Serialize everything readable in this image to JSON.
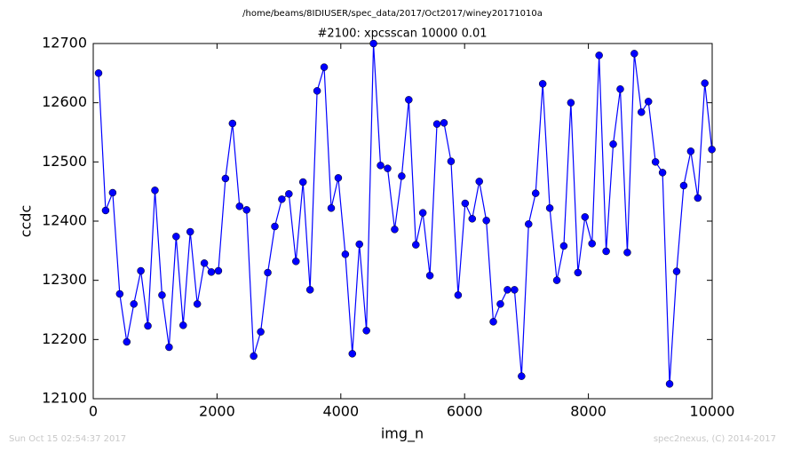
{
  "chart_data": {
    "type": "line",
    "suptitle": "/home/beams/8IDIUSER/spec_data/2017/Oct2017/winey20171010a",
    "title": "#2100: xpcsscan 10000 0.01",
    "xlabel": "img_n",
    "ylabel": "ccdc",
    "footer_left": "Sun Oct 15 02:54:37 2017",
    "footer_right": "spec2nexus, (C) 2014-2017",
    "xlim": [
      0,
      10000
    ],
    "xticks": [
      0,
      2000,
      4000,
      6000,
      8000,
      10000
    ],
    "ylim": [
      12100,
      12700
    ],
    "yticks": [
      12100,
      12200,
      12300,
      12400,
      12500,
      12600,
      12700
    ],
    "x": [
      86,
      200,
      314,
      428,
      542,
      656,
      769,
      883,
      997,
      1111,
      1225,
      1339,
      1453,
      1567,
      1681,
      1795,
      1908,
      2022,
      2136,
      2250,
      2364,
      2478,
      2592,
      2706,
      2820,
      2934,
      3047,
      3161,
      3275,
      3389,
      3503,
      3617,
      3731,
      3845,
      3959,
      4073,
      4186,
      4300,
      4414,
      4528,
      4642,
      4756,
      4870,
      4984,
      5098,
      5212,
      5325,
      5439,
      5553,
      5667,
      5781,
      5895,
      6009,
      6123,
      6237,
      6351,
      6464,
      6578,
      6692,
      6806,
      6920,
      7034,
      7148,
      7262,
      7376,
      7490,
      7603,
      7717,
      7831,
      7945,
      8059,
      8173,
      8287,
      8401,
      8515,
      8629,
      8742,
      8856,
      8970,
      9084,
      9198,
      9312,
      9426,
      9540,
      9654,
      9768,
      9881,
      9995
    ],
    "series": [
      {
        "name": "ccdc",
        "color": "#0000ff",
        "values": [
          12650,
          12418,
          12448,
          12277,
          12196,
          12260,
          12316,
          12223,
          12452,
          12275,
          12187,
          12374,
          12224,
          12382,
          12260,
          12329,
          12314,
          12316,
          12472,
          12565,
          12425,
          12419,
          12172,
          12213,
          12313,
          12391,
          12437,
          12446,
          12332,
          12466,
          12284,
          12620,
          12660,
          12422,
          12473,
          12344,
          12176,
          12361,
          12215,
          12700,
          12494,
          12489,
          12386,
          12476,
          12605,
          12360,
          12414,
          12308,
          12564,
          12566,
          12501,
          12275,
          12430,
          12404,
          12467,
          12401,
          12230,
          12260,
          12284,
          12284,
          12138,
          12395,
          12447,
          12632,
          12422,
          12300,
          12358,
          12600,
          12313,
          12407,
          12362,
          12680,
          12349,
          12530,
          12623,
          12347,
          12683,
          12584,
          12602,
          12500,
          12482,
          12125,
          12315,
          12460,
          12518,
          12439,
          12633,
          12521
        ]
      }
    ]
  }
}
